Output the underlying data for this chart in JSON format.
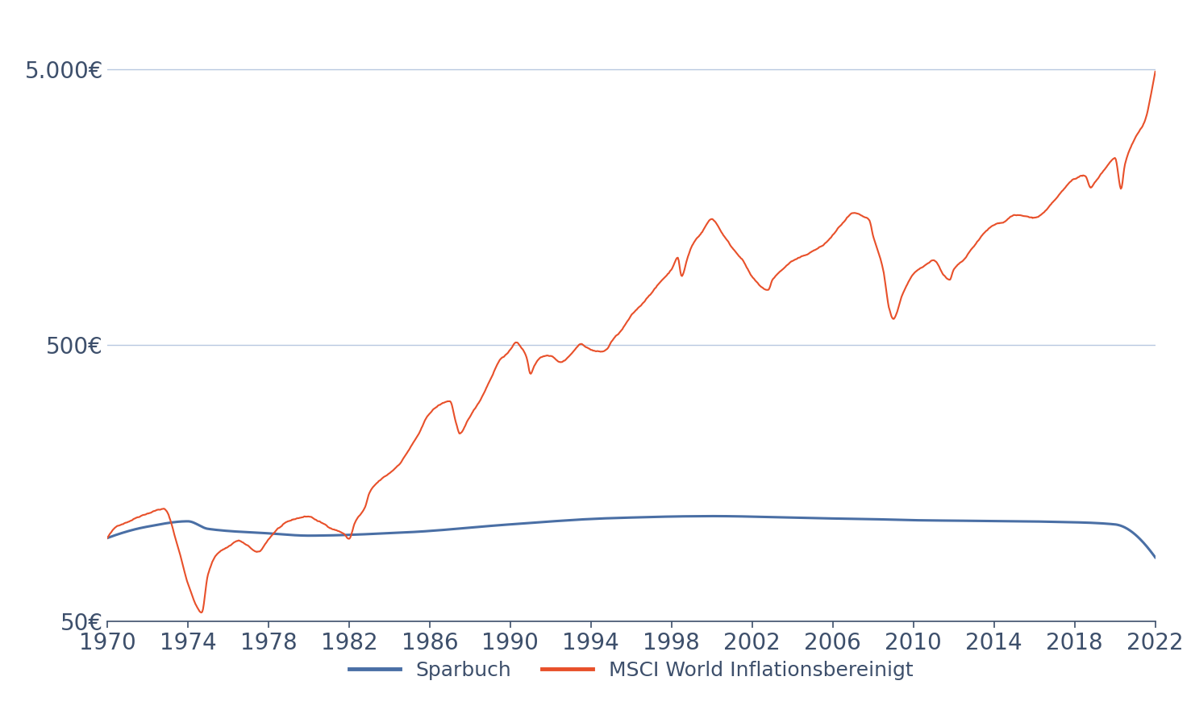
{
  "title": "",
  "xlabel": "",
  "ylabel": "",
  "background_color": "#ffffff",
  "grid_color": "#b8c8e0",
  "sparbuch_color": "#4a6fa5",
  "msci_color": "#e8502a",
  "legend_labels": [
    "Sparbuch",
    "MSCI World Inflationsbereinigt"
  ],
  "yticks": [
    50,
    500,
    5000
  ],
  "ytick_labels": [
    "50€",
    "500€",
    "5.000€"
  ],
  "xticks": [
    1970,
    1974,
    1978,
    1982,
    1986,
    1990,
    1994,
    1998,
    2002,
    2006,
    2010,
    2014,
    2018,
    2022
  ],
  "ymin": 50,
  "ymax": 7000,
  "xmin": 1970,
  "xmax": 2022,
  "text_color": "#3d4f6b",
  "tick_fontsize": 20,
  "legend_fontsize": 18,
  "sparbuch_linewidth": 2.2,
  "msci_linewidth": 1.5
}
